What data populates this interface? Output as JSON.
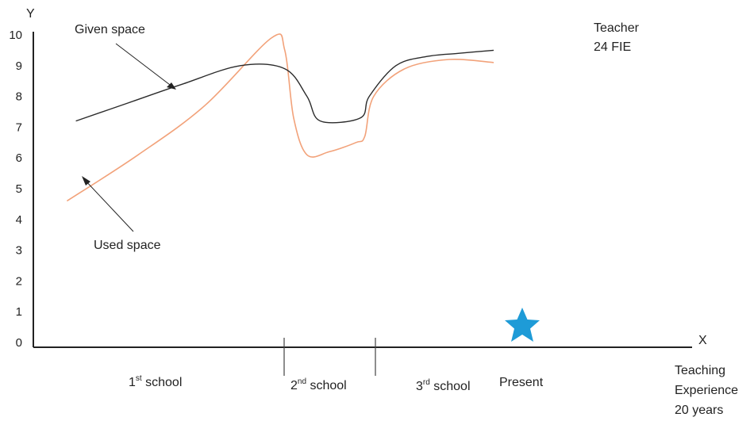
{
  "chart_data": {
    "type": "line",
    "axes": {
      "x_label": "X",
      "y_label": "Y"
    },
    "ylim": [
      0,
      10
    ],
    "y_ticks": [
      "0",
      "1",
      "2",
      "3",
      "4",
      "5",
      "6",
      "7",
      "8",
      "9",
      "10"
    ],
    "x_regions": [
      {
        "base": "1",
        "sup": "st",
        "rest": " school"
      },
      {
        "base": "2",
        "sup": "nd",
        "rest": " school"
      },
      {
        "base": "3",
        "sup": "rd",
        "rest": " school"
      },
      {
        "base": "Present",
        "sup": "",
        "rest": ""
      }
    ],
    "series": [
      {
        "name": "Given space",
        "color": "#2b2b2b",
        "x": [
          0.06,
          0.18,
          0.3,
          0.43,
          0.53,
          0.58,
          0.61,
          0.7,
          0.72,
          0.78,
          0.85,
          0.92,
          1.0
        ],
        "y": [
          7.2,
          7.8,
          8.4,
          9.0,
          8.9,
          8.0,
          7.2,
          7.3,
          8.0,
          9.0,
          9.3,
          9.4,
          9.5
        ]
      },
      {
        "name": "Used space",
        "color": "#f2a27a",
        "x": [
          0.04,
          0.2,
          0.35,
          0.5,
          0.53,
          0.55,
          0.58,
          0.63,
          0.69,
          0.71,
          0.73,
          0.8,
          0.9,
          1.0
        ],
        "y": [
          4.6,
          6.1,
          7.7,
          9.9,
          9.5,
          7.3,
          6.1,
          6.2,
          6.5,
          6.7,
          8.0,
          8.9,
          9.2,
          9.1
        ]
      }
    ],
    "annotations": {
      "given_label": "Given space",
      "used_label": "Used space",
      "teacher_line1": "Teacher",
      "teacher_line2": "24 FIE",
      "xaxis_line1": "Teaching",
      "xaxis_line2": "Experience",
      "xaxis_line3": "20 years"
    },
    "marker": {
      "shape": "star",
      "color": "#1e9bd7",
      "region": "Present"
    },
    "grid": false,
    "legend": "none"
  }
}
